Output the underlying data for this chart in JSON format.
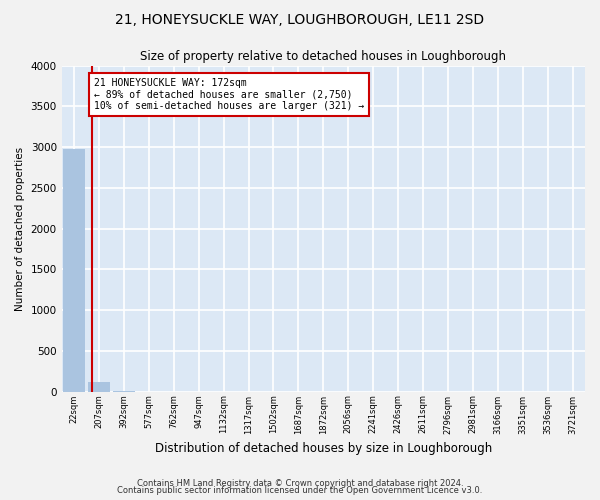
{
  "title": "21, HONEYSUCKLE WAY, LOUGHBOROUGH, LE11 2SD",
  "subtitle": "Size of property relative to detached houses in Loughborough",
  "xlabel": "Distribution of detached houses by size in Loughborough",
  "ylabel": "Number of detached properties",
  "categories": [
    "22sqm",
    "207sqm",
    "392sqm",
    "577sqm",
    "762sqm",
    "947sqm",
    "1132sqm",
    "1317sqm",
    "1502sqm",
    "1687sqm",
    "1872sqm",
    "2056sqm",
    "2241sqm",
    "2426sqm",
    "2611sqm",
    "2796sqm",
    "2981sqm",
    "3166sqm",
    "3351sqm",
    "3536sqm",
    "3721sqm"
  ],
  "values": [
    2980,
    120,
    3,
    1,
    1,
    0,
    0,
    0,
    0,
    0,
    0,
    0,
    0,
    0,
    0,
    0,
    0,
    0,
    0,
    0,
    0
  ],
  "bar_color": "#aac4e0",
  "annotation_box_color": "#cc0000",
  "annotation_line1": "21 HONEYSUCKLE WAY: 172sqm",
  "annotation_line2": "← 89% of detached houses are smaller (2,750)",
  "annotation_line3": "10% of semi-detached houses are larger (321) →",
  "ylim": [
    0,
    4000
  ],
  "yticks": [
    0,
    500,
    1000,
    1500,
    2000,
    2500,
    3000,
    3500,
    4000
  ],
  "footer_line1": "Contains HM Land Registry data © Crown copyright and database right 2024.",
  "footer_line2": "Contains public sector information licensed under the Open Government Licence v3.0.",
  "bg_color": "#dce8f5",
  "grid_color": "#ffffff",
  "fig_bg": "#f2f2f2"
}
